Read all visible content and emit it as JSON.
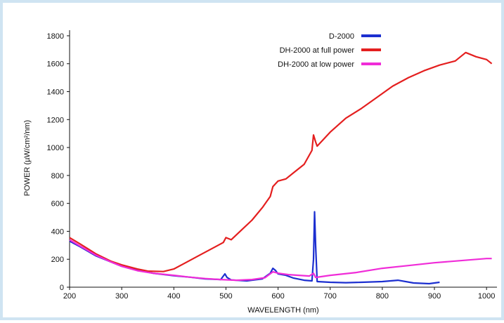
{
  "chart_data": {
    "type": "line",
    "xlabel": "WAVELENGTH (nm)",
    "ylabel": "POWER (µW/cm²/nm)",
    "xlim": [
      200,
      1020
    ],
    "ylim": [
      0,
      1850
    ],
    "xticks": [
      200,
      300,
      400,
      500,
      600,
      700,
      800,
      900,
      1000
    ],
    "yticks": [
      0,
      200,
      400,
      600,
      800,
      1000,
      1200,
      1400,
      1600,
      1800
    ],
    "xtick_labels": [
      "200",
      "300",
      "400",
      "500",
      "600",
      "700",
      "800",
      "900",
      "1000"
    ],
    "ytick_labels": [
      "0",
      "200",
      "400",
      "600",
      "800",
      "1000",
      "1200",
      "1400",
      "1600",
      "1800"
    ],
    "grid": false,
    "legend_position": "top-right",
    "series": [
      {
        "name": "D-2000",
        "color": "#1c2fd0",
        "points": [
          [
            200,
            330
          ],
          [
            220,
            290
          ],
          [
            250,
            225
          ],
          [
            280,
            180
          ],
          [
            300,
            150
          ],
          [
            330,
            120
          ],
          [
            360,
            100
          ],
          [
            400,
            82
          ],
          [
            430,
            72
          ],
          [
            460,
            60
          ],
          [
            490,
            55
          ],
          [
            495,
            80
          ],
          [
            498,
            95
          ],
          [
            502,
            70
          ],
          [
            510,
            52
          ],
          [
            540,
            45
          ],
          [
            570,
            60
          ],
          [
            585,
            100
          ],
          [
            590,
            135
          ],
          [
            595,
            120
          ],
          [
            600,
            95
          ],
          [
            615,
            85
          ],
          [
            630,
            65
          ],
          [
            650,
            50
          ],
          [
            665,
            45
          ],
          [
            668,
            200
          ],
          [
            670,
            540
          ],
          [
            672,
            300
          ],
          [
            675,
            40
          ],
          [
            700,
            35
          ],
          [
            730,
            32
          ],
          [
            760,
            35
          ],
          [
            800,
            40
          ],
          [
            830,
            50
          ],
          [
            860,
            30
          ],
          [
            890,
            25
          ],
          [
            910,
            35
          ]
        ]
      },
      {
        "name": "DH-2000 at full power",
        "color": "#e41f1f",
        "points": [
          [
            200,
            355
          ],
          [
            220,
            310
          ],
          [
            250,
            240
          ],
          [
            280,
            185
          ],
          [
            300,
            160
          ],
          [
            330,
            130
          ],
          [
            350,
            115
          ],
          [
            380,
            112
          ],
          [
            400,
            130
          ],
          [
            420,
            170
          ],
          [
            450,
            230
          ],
          [
            480,
            290
          ],
          [
            495,
            320
          ],
          [
            500,
            355
          ],
          [
            510,
            340
          ],
          [
            530,
            410
          ],
          [
            550,
            480
          ],
          [
            570,
            570
          ],
          [
            585,
            650
          ],
          [
            590,
            720
          ],
          [
            600,
            760
          ],
          [
            615,
            775
          ],
          [
            630,
            820
          ],
          [
            650,
            880
          ],
          [
            665,
            980
          ],
          [
            668,
            1090
          ],
          [
            672,
            1040
          ],
          [
            675,
            1010
          ],
          [
            700,
            1110
          ],
          [
            730,
            1210
          ],
          [
            760,
            1280
          ],
          [
            790,
            1360
          ],
          [
            820,
            1440
          ],
          [
            850,
            1500
          ],
          [
            880,
            1550
          ],
          [
            910,
            1590
          ],
          [
            940,
            1620
          ],
          [
            960,
            1680
          ],
          [
            980,
            1650
          ],
          [
            1000,
            1630
          ],
          [
            1010,
            1600
          ]
        ]
      },
      {
        "name": "DH-2000 at low power",
        "color": "#f02cd8",
        "points": [
          [
            200,
            340
          ],
          [
            220,
            295
          ],
          [
            250,
            230
          ],
          [
            280,
            180
          ],
          [
            300,
            150
          ],
          [
            330,
            118
          ],
          [
            360,
            100
          ],
          [
            400,
            85
          ],
          [
            430,
            72
          ],
          [
            460,
            62
          ],
          [
            490,
            55
          ],
          [
            520,
            50
          ],
          [
            550,
            55
          ],
          [
            575,
            68
          ],
          [
            590,
            110
          ],
          [
            600,
            100
          ],
          [
            620,
            90
          ],
          [
            640,
            85
          ],
          [
            660,
            80
          ],
          [
            668,
            100
          ],
          [
            672,
            70
          ],
          [
            700,
            85
          ],
          [
            750,
            105
          ],
          [
            800,
            135
          ],
          [
            850,
            155
          ],
          [
            900,
            175
          ],
          [
            950,
            190
          ],
          [
            1000,
            205
          ],
          [
            1010,
            205
          ]
        ]
      }
    ]
  }
}
